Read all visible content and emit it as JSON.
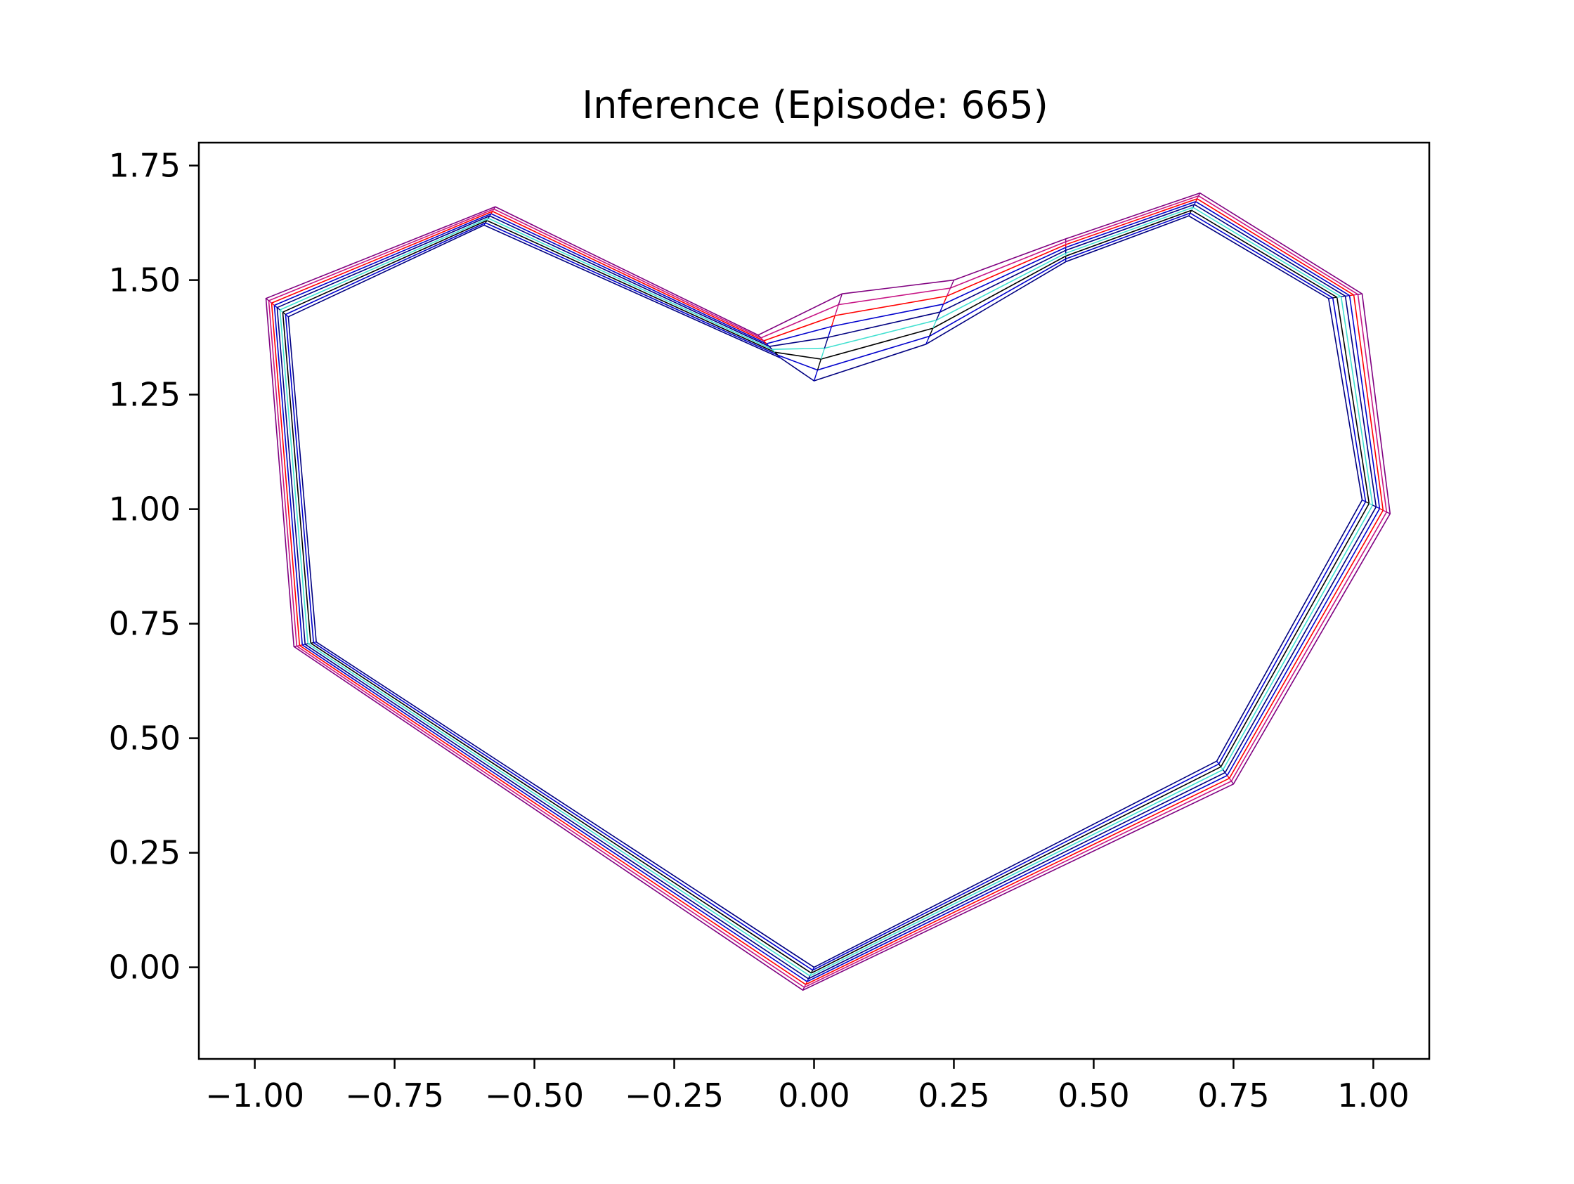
{
  "chart_data": {
    "type": "line",
    "title": "Inference (Episode: 665)",
    "xlabel": "",
    "ylabel": "",
    "xlim": [
      -1.1,
      1.1
    ],
    "ylim": [
      -0.2,
      1.8
    ],
    "xticks": [
      -1.0,
      -0.75,
      -0.5,
      -0.25,
      0.0,
      0.25,
      0.5,
      0.75,
      1.0
    ],
    "xtick_labels": [
      "−1.00",
      "−0.75",
      "−0.50",
      "−0.25",
      "0.00",
      "0.25",
      "0.50",
      "0.75",
      "1.00"
    ],
    "yticks": [
      0.0,
      0.25,
      0.5,
      0.75,
      1.0,
      1.25,
      1.5,
      1.75
    ],
    "ytick_labels": [
      "0.00",
      "0.25",
      "0.50",
      "0.75",
      "1.00",
      "1.25",
      "1.50",
      "1.75"
    ],
    "grid": false,
    "legend": "none",
    "series_colors": [
      "#000080",
      "#0000cd",
      "#000000",
      "#40e0d0",
      "#000080",
      "#0000cd",
      "#ff0000",
      "#c71585",
      "#800080"
    ],
    "outer_polygon": [
      [
        -0.98,
        1.46
      ],
      [
        -0.57,
        1.66
      ],
      [
        -0.1,
        1.38
      ],
      [
        0.05,
        1.47
      ],
      [
        0.25,
        1.5
      ],
      [
        0.45,
        1.59
      ],
      [
        0.69,
        1.69
      ],
      [
        0.98,
        1.47
      ],
      [
        1.03,
        0.99
      ],
      [
        0.75,
        0.4
      ],
      [
        -0.02,
        -0.05
      ],
      [
        -0.93,
        0.7
      ]
    ],
    "inner_polygon": [
      [
        -0.94,
        1.42
      ],
      [
        -0.59,
        1.62
      ],
      [
        -0.06,
        1.33
      ],
      [
        0.0,
        1.28
      ],
      [
        0.2,
        1.36
      ],
      [
        0.45,
        1.54
      ],
      [
        0.67,
        1.64
      ],
      [
        0.92,
        1.46
      ],
      [
        0.98,
        1.02
      ],
      [
        0.72,
        0.45
      ],
      [
        0.0,
        0.0
      ],
      [
        -0.89,
        0.71
      ]
    ]
  }
}
